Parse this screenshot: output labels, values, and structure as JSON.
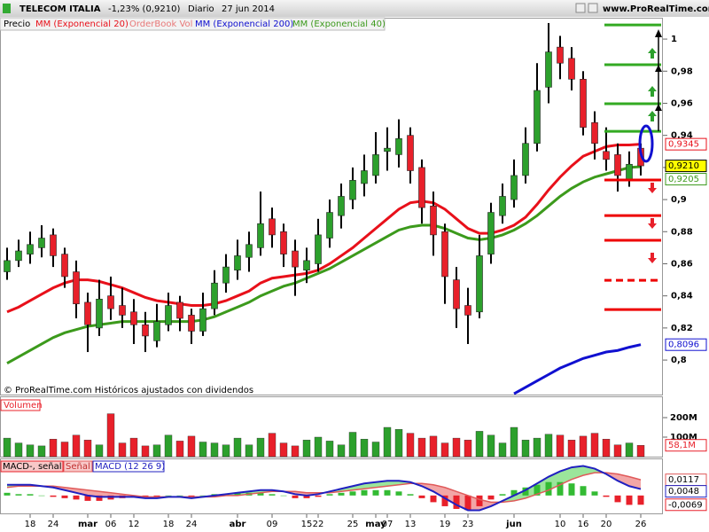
{
  "chart_data": [
    {
      "type": "candlestick",
      "title": "TELECOM ITALIA",
      "change": "-1,23% (0,9210)",
      "period": "Diario",
      "date": "27 jun 2014",
      "source": "www.ProRealTime.com",
      "note": "© ProRealTime.com Históricos ajustados con dividendos",
      "price_name": "Precio",
      "orderbook_label": "OrderBook Vol",
      "up_color": "#2ca02c",
      "down_color": "#e8202a",
      "open": [
        0.855,
        0.862,
        0.866,
        0.87,
        0.878,
        0.866,
        0.855,
        0.836,
        0.82,
        0.84,
        0.834,
        0.83,
        0.822,
        0.812,
        0.822,
        0.836,
        0.828,
        0.818,
        0.832,
        0.848,
        0.856,
        0.864,
        0.87,
        0.888,
        0.88,
        0.868,
        0.856,
        0.86,
        0.876,
        0.89,
        0.9,
        0.91,
        0.915,
        0.93,
        0.928,
        0.94,
        0.92,
        0.896,
        0.88,
        0.85,
        0.834,
        0.83,
        0.866,
        0.89,
        0.9,
        0.915,
        0.935,
        0.97,
        0.995,
        0.988,
        0.975,
        0.948,
        0.93,
        0.928,
        0.912,
        0.932
      ],
      "high": [
        0.87,
        0.875,
        0.88,
        0.884,
        0.882,
        0.87,
        0.862,
        0.842,
        0.85,
        0.852,
        0.845,
        0.838,
        0.83,
        0.835,
        0.842,
        0.84,
        0.832,
        0.842,
        0.856,
        0.866,
        0.875,
        0.88,
        0.905,
        0.895,
        0.885,
        0.875,
        0.87,
        0.888,
        0.9,
        0.91,
        0.92,
        0.928,
        0.942,
        0.945,
        0.95,
        0.945,
        0.925,
        0.905,
        0.885,
        0.858,
        0.845,
        0.878,
        0.898,
        0.91,
        0.925,
        0.945,
        0.985,
        1.01,
        1.002,
        0.995,
        0.98,
        0.955,
        0.945,
        0.935,
        0.93,
        0.935
      ],
      "low": [
        0.85,
        0.858,
        0.86,
        0.864,
        0.858,
        0.845,
        0.826,
        0.805,
        0.815,
        0.825,
        0.82,
        0.81,
        0.805,
        0.808,
        0.818,
        0.818,
        0.81,
        0.815,
        0.828,
        0.842,
        0.85,
        0.855,
        0.865,
        0.87,
        0.858,
        0.84,
        0.848,
        0.855,
        0.87,
        0.882,
        0.894,
        0.902,
        0.91,
        0.918,
        0.92,
        0.91,
        0.885,
        0.865,
        0.835,
        0.82,
        0.81,
        0.826,
        0.86,
        0.885,
        0.895,
        0.91,
        0.93,
        0.96,
        0.975,
        0.968,
        0.94,
        0.925,
        0.918,
        0.905,
        0.908,
        0.915
      ],
      "close": [
        0.862,
        0.868,
        0.872,
        0.876,
        0.865,
        0.852,
        0.835,
        0.822,
        0.838,
        0.832,
        0.828,
        0.822,
        0.815,
        0.824,
        0.834,
        0.826,
        0.818,
        0.832,
        0.848,
        0.858,
        0.865,
        0.872,
        0.885,
        0.878,
        0.866,
        0.858,
        0.862,
        0.878,
        0.892,
        0.902,
        0.912,
        0.918,
        0.928,
        0.932,
        0.938,
        0.918,
        0.895,
        0.878,
        0.852,
        0.832,
        0.828,
        0.865,
        0.892,
        0.902,
        0.915,
        0.935,
        0.968,
        0.992,
        0.985,
        0.975,
        0.945,
        0.935,
        0.925,
        0.915,
        0.922,
        0.921
      ],
      "last_label": "0,9210",
      "series": [
        {
          "name": "MM (Exponencial 20)",
          "color": "#e8101a",
          "width": 3,
          "last_label": "0,9345",
          "values": [
            0.83,
            0.833,
            0.837,
            0.841,
            0.845,
            0.848,
            0.85,
            0.85,
            0.849,
            0.847,
            0.845,
            0.842,
            0.839,
            0.837,
            0.836,
            0.835,
            0.834,
            0.834,
            0.835,
            0.837,
            0.84,
            0.843,
            0.848,
            0.851,
            0.852,
            0.853,
            0.854,
            0.856,
            0.86,
            0.865,
            0.87,
            0.876,
            0.882,
            0.888,
            0.894,
            0.898,
            0.899,
            0.898,
            0.894,
            0.888,
            0.882,
            0.879,
            0.879,
            0.881,
            0.884,
            0.889,
            0.897,
            0.906,
            0.914,
            0.921,
            0.927,
            0.93,
            0.933,
            0.934,
            0.934,
            0.9345
          ]
        },
        {
          "name": "MM (Exponencial 200)",
          "color": "#1010d0",
          "width": 3,
          "last_label": "0,8096",
          "values": [
            null,
            null,
            null,
            null,
            null,
            null,
            null,
            null,
            null,
            null,
            null,
            null,
            null,
            null,
            null,
            null,
            null,
            null,
            null,
            null,
            null,
            null,
            null,
            null,
            null,
            null,
            null,
            null,
            null,
            null,
            null,
            null,
            null,
            null,
            null,
            null,
            null,
            null,
            null,
            null,
            null,
            null,
            null,
            null,
            0.779,
            0.783,
            0.787,
            0.791,
            0.795,
            0.798,
            0.801,
            0.803,
            0.805,
            0.806,
            0.808,
            0.8096
          ]
        },
        {
          "name": "MM (Exponencial 40)",
          "color": "#3c9a1c",
          "width": 3,
          "last_label": "0,9205",
          "values": [
            0.798,
            0.802,
            0.806,
            0.81,
            0.814,
            0.817,
            0.819,
            0.821,
            0.822,
            0.823,
            0.824,
            0.824,
            0.824,
            0.824,
            0.824,
            0.824,
            0.824,
            0.825,
            0.827,
            0.83,
            0.833,
            0.836,
            0.84,
            0.843,
            0.846,
            0.848,
            0.851,
            0.854,
            0.857,
            0.861,
            0.865,
            0.869,
            0.873,
            0.877,
            0.881,
            0.883,
            0.884,
            0.884,
            0.882,
            0.879,
            0.876,
            0.875,
            0.876,
            0.878,
            0.881,
            0.885,
            0.89,
            0.896,
            0.902,
            0.907,
            0.911,
            0.914,
            0.916,
            0.918,
            0.92,
            0.9205
          ]
        }
      ],
      "levels": [
        {
          "value": 1.0088,
          "color": "#33aa22"
        },
        {
          "value": 0.984,
          "color": "#33aa22"
        },
        {
          "value": 0.9597,
          "color": "#33aa22"
        },
        {
          "value": 0.9425,
          "color": "#33aa22"
        },
        {
          "value": 0.9122,
          "color": "#ee0000"
        },
        {
          "value": 0.89,
          "color": "#ee0000"
        },
        {
          "value": 0.8746,
          "color": "#ee0000"
        },
        {
          "value": 0.8497,
          "color": "#ee0000",
          "dashed": true
        },
        {
          "value": 0.8315,
          "color": "#ee0000"
        }
      ],
      "ylim": [
        0.7785,
        1.0133
      ],
      "yticks": [
        {
          "value": 0.8,
          "label": "0,8"
        },
        {
          "value": 0.82,
          "label": "0,82"
        },
        {
          "value": 0.84,
          "label": "0,84"
        },
        {
          "value": 0.86,
          "label": "0,86"
        },
        {
          "value": 0.88,
          "label": "0,88"
        },
        {
          "value": 0.9,
          "label": "0,9"
        },
        {
          "value": 0.92,
          "label": "0,92"
        },
        {
          "value": 0.94,
          "label": "0,94"
        },
        {
          "value": 0.96,
          "label": "0,96"
        },
        {
          "value": 0.98,
          "label": "0,98"
        },
        1
      ]
    },
    {
      "type": "bar",
      "title": "Volumen",
      "color": "#e8202a",
      "values": [
        95,
        70,
        60,
        55,
        90,
        75,
        110,
        85,
        60,
        220,
        70,
        95,
        55,
        60,
        110,
        80,
        105,
        75,
        70,
        60,
        95,
        60,
        95,
        120,
        70,
        55,
        85,
        100,
        80,
        60,
        125,
        90,
        75,
        150,
        140,
        120,
        95,
        105,
        70,
        95,
        85,
        130,
        110,
        70,
        150,
        85,
        95,
        115,
        110,
        85,
        105,
        120,
        90,
        60,
        70,
        58.1
      ],
      "last_label": "58,1M",
      "ylim": [
        0,
        300
      ],
      "yticks": [
        {
          "value": 100,
          "label": "100M"
        },
        {
          "value": 200,
          "label": "200M"
        }
      ]
    },
    {
      "type": "line",
      "categories": [
        null,
        null,
        "18",
        null,
        "24",
        null,
        null,
        "mar",
        null,
        "06",
        null,
        "12",
        null,
        null,
        "18",
        null,
        "24",
        null,
        null,
        null,
        "abr",
        null,
        null,
        "09",
        null,
        null,
        "15",
        "22",
        null,
        null,
        "25",
        null,
        "may",
        "07",
        null,
        "13",
        null,
        null,
        "19",
        null,
        "23",
        null,
        null,
        null,
        "jun",
        null,
        null,
        null,
        "10",
        null,
        "16",
        null,
        "20",
        null,
        null,
        "26"
      ],
      "series": [
        {
          "name": "MACD-, señal",
          "type": "bar",
          "color": "#33bb33",
          "negative_color": "#e8202a",
          "last_label": "-0,0069",
          "values": [
            0.002,
            0.001,
            0.001,
            0.0,
            -0.001,
            -0.002,
            -0.003,
            -0.004,
            -0.004,
            -0.003,
            -0.002,
            -0.001,
            -0.001,
            -0.001,
            0.0,
            0.0,
            -0.001,
            0.0,
            0.001,
            0.001,
            0.002,
            0.002,
            0.002,
            0.001,
            0.0,
            -0.002,
            -0.002,
            -0.001,
            0.001,
            0.002,
            0.003,
            0.004,
            0.004,
            0.004,
            0.003,
            0.001,
            -0.002,
            -0.005,
            -0.008,
            -0.01,
            -0.011,
            -0.008,
            -0.003,
            0.001,
            0.004,
            0.006,
            0.008,
            0.01,
            0.01,
            0.009,
            0.007,
            0.003,
            -0.001,
            -0.005,
            -0.007,
            -0.0069
          ]
        },
        {
          "name": "Señal",
          "color": "#e05a5a",
          "last_label": "0,0117",
          "values": [
            0.006,
            0.007,
            0.007,
            0.007,
            0.007,
            0.006,
            0.005,
            0.004,
            0.003,
            0.002,
            0.001,
            0.0,
            -0.001,
            -0.001,
            -0.001,
            -0.001,
            -0.001,
            -0.001,
            -0.001,
            0.0,
            0.0,
            0.001,
            0.002,
            0.003,
            0.003,
            0.003,
            0.002,
            0.002,
            0.002,
            0.003,
            0.004,
            0.005,
            0.006,
            0.007,
            0.008,
            0.009,
            0.009,
            0.008,
            0.006,
            0.003,
            0.0,
            -0.003,
            -0.005,
            -0.005,
            -0.004,
            -0.002,
            0.001,
            0.004,
            0.008,
            0.012,
            0.015,
            0.017,
            0.017,
            0.016,
            0.014,
            0.0117
          ]
        },
        {
          "name": "MACD (12 26 9)",
          "color": "#2020c0",
          "last_label": "0,0048",
          "values": [
            0.008,
            0.008,
            0.008,
            0.007,
            0.006,
            0.004,
            0.002,
            0.0,
            -0.001,
            -0.001,
            -0.001,
            -0.001,
            -0.002,
            -0.002,
            -0.001,
            -0.001,
            -0.002,
            -0.001,
            0.0,
            0.001,
            0.002,
            0.003,
            0.004,
            0.004,
            0.003,
            0.001,
            0.0,
            0.001,
            0.003,
            0.005,
            0.007,
            0.009,
            0.01,
            0.011,
            0.011,
            0.01,
            0.007,
            0.003,
            -0.002,
            -0.007,
            -0.011,
            -0.011,
            -0.008,
            -0.004,
            0.0,
            0.004,
            0.009,
            0.014,
            0.018,
            0.021,
            0.022,
            0.02,
            0.016,
            0.011,
            0.007,
            0.0048
          ]
        }
      ],
      "ylim": [
        -0.014,
        0.027
      ]
    }
  ]
}
